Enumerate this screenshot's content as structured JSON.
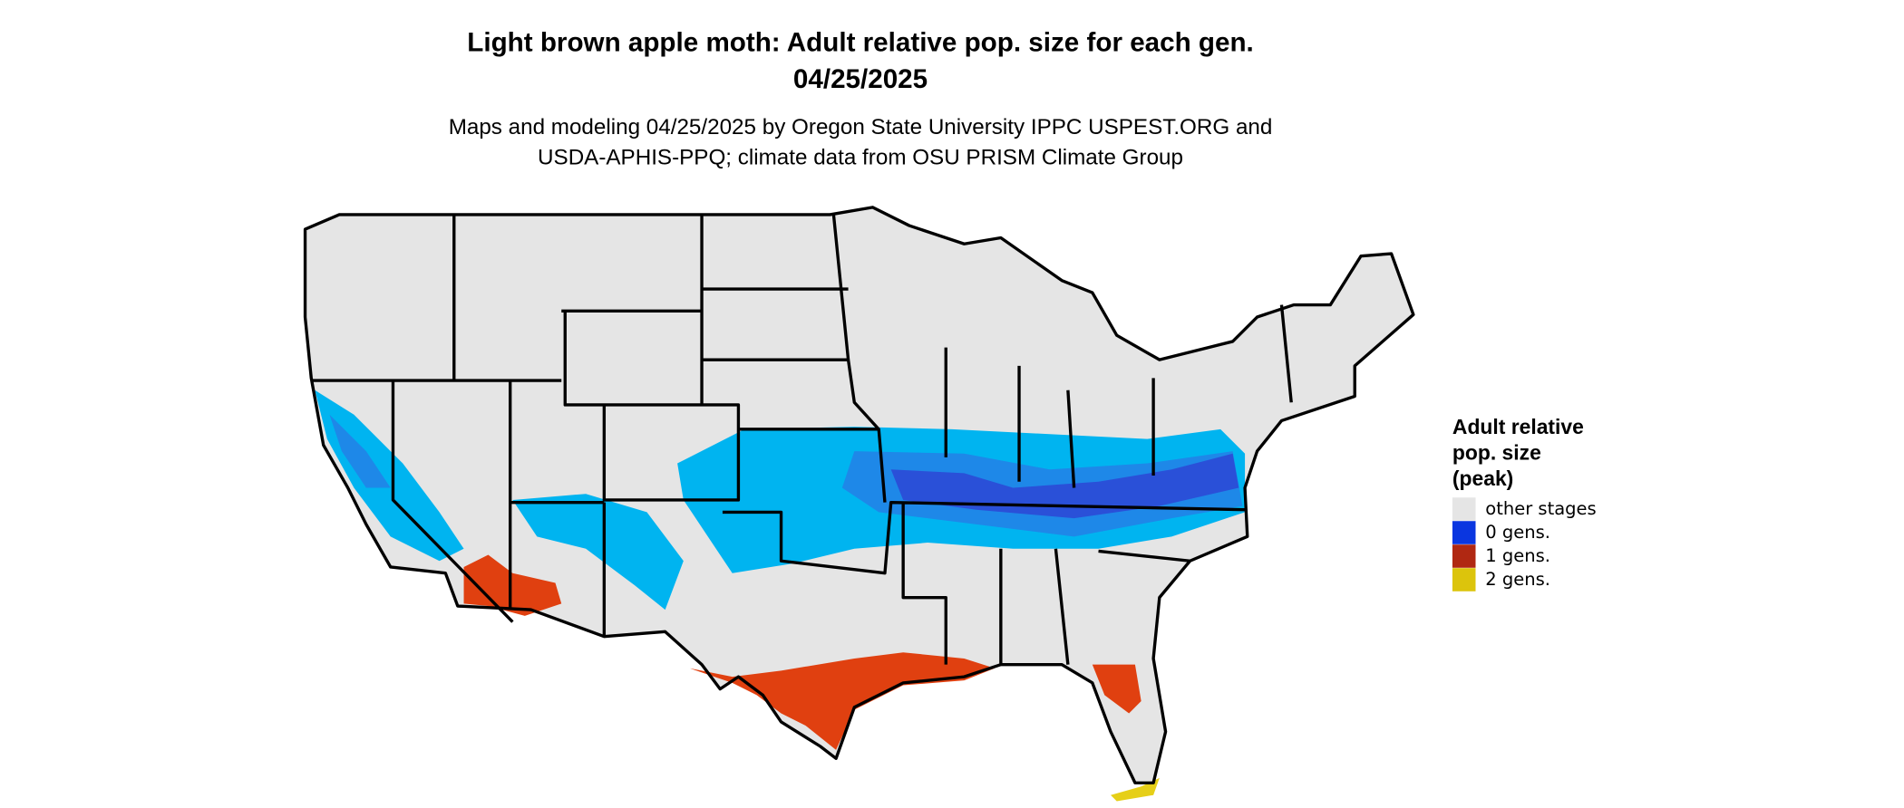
{
  "header": {
    "title_lines": [
      "Light brown apple moth: Adult relative pop. size for each gen.",
      "04/25/2025"
    ],
    "subtitle_lines": [
      "Maps and modeling 04/25/2025 by Oregon State University IPPC USPEST.ORG and",
      "USDA-APHIS-PPQ; climate data from OSU PRISM Climate Group"
    ]
  },
  "legend": {
    "title_lines": [
      "Adult relative",
      "pop. size",
      "(peak)"
    ],
    "items": [
      {
        "label": "other stages",
        "color": "#e5e5e5"
      },
      {
        "label": "0 gens.",
        "color": "#0a36e0"
      },
      {
        "label": "1 gens.",
        "color": "#b02812"
      },
      {
        "label": "2 gens.",
        "color": "#dcc40c"
      }
    ]
  }
}
